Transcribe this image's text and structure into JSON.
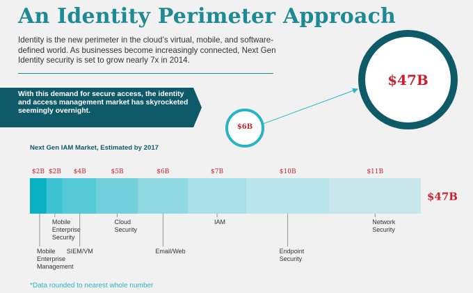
{
  "page": {
    "title": "An Identity Perimeter Approach",
    "intro": "Identity is the new perimeter in the cloud’s virtual, mobile, and software-defined world. As businesses become increasingly connected, Next Gen Identity security is set to grow nearly 7x in 2014.",
    "banner": "With this demand for secure access, the identity and access management market has skyrocketed seemingly overnight.",
    "small_circle_value": "$6B",
    "big_circle_value": "$47B",
    "footnote": "*Data rounded to nearest whole number"
  },
  "chart_data": {
    "type": "bar",
    "stacked": true,
    "orientation": "horizontal",
    "title": "Next Gen IAM Market, Estimated by 2017",
    "total_label": "$47B",
    "unit": "billion USD",
    "segments": [
      {
        "label_lines": [
          "Mobile",
          "Enterprise",
          "Management"
        ],
        "value": 2,
        "value_label": "$2B",
        "color": "#08b2c3",
        "label_row": 3
      },
      {
        "label_lines": [
          "Mobile",
          "Enterprise",
          "Security"
        ],
        "value": 2,
        "value_label": "$2B",
        "color": "#3ec3d2",
        "label_row": 1
      },
      {
        "label_lines": [
          "SIEM/VM"
        ],
        "value": 4,
        "value_label": "$4B",
        "color": "#55c9d6",
        "label_row": 2
      },
      {
        "label_lines": [
          "Cloud",
          "Security"
        ],
        "value": 5,
        "value_label": "$5B",
        "color": "#72d0dc",
        "label_row": 1
      },
      {
        "label_lines": [
          "Email/Web"
        ],
        "value": 6,
        "value_label": "$6B",
        "color": "#8dd8e1",
        "label_row": 2
      },
      {
        "label_lines": [
          "IAM"
        ],
        "value": 7,
        "value_label": "$7B",
        "color": "#a6dfe6",
        "label_row": 1
      },
      {
        "label_lines": [
          "Endpoint",
          "Security"
        ],
        "value": 10,
        "value_label": "$10B",
        "color": "#b8e4ea",
        "label_row": 2
      },
      {
        "label_lines": [
          "Network",
          "Security"
        ],
        "value": 11,
        "value_label": "$11B",
        "color": "#c7e6eb",
        "label_row": 1
      }
    ]
  }
}
